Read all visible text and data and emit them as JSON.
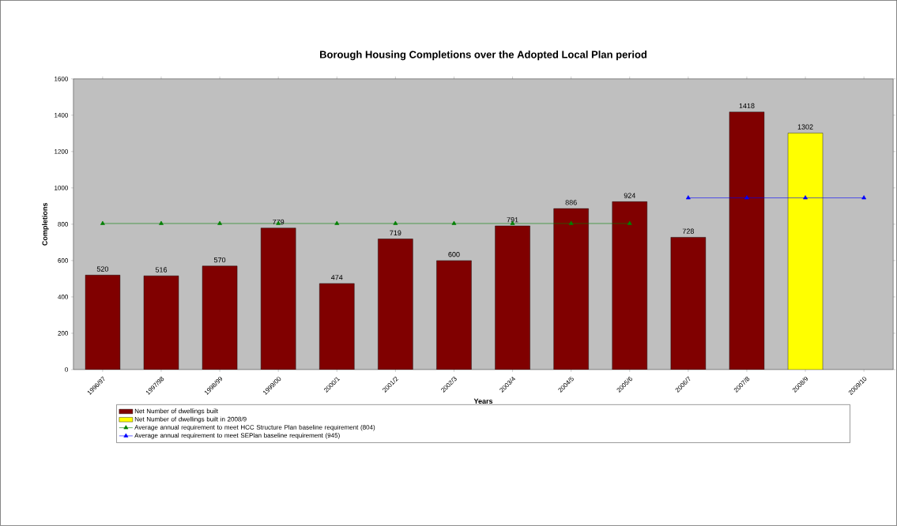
{
  "chart_data": {
    "type": "bar",
    "title": "Borough Housing Completions over the Adopted Local Plan period",
    "xlabel": "Years",
    "ylabel": "Completions",
    "categories": [
      "1996/97",
      "1997/98",
      "1998/99",
      "1999/00",
      "2000/1",
      "2001/2",
      "2002/3",
      "2003/4",
      "2004/5",
      "2005/6",
      "2006/7",
      "2007/8",
      "2008/9",
      "2009/10"
    ],
    "ylim": [
      0,
      1600
    ],
    "yticks": [
      0,
      200,
      400,
      600,
      800,
      1000,
      1200,
      1400,
      1600
    ],
    "legend": "bottom",
    "series": [
      {
        "name": "Net Number of dwellings built",
        "color": "#800000",
        "values": [
          520,
          516,
          570,
          779,
          474,
          719,
          600,
          791,
          886,
          924,
          728,
          1418,
          null,
          null
        ],
        "value_labels": [
          "520",
          "516",
          "570",
          "779",
          "474",
          "719",
          "600",
          "791",
          "886",
          "924",
          "728",
          "1418",
          null,
          null
        ]
      },
      {
        "name": "Net Number of dwellings built in 2008/9",
        "color": "#ffff00",
        "values": [
          null,
          null,
          null,
          null,
          null,
          null,
          null,
          null,
          null,
          null,
          null,
          null,
          1302,
          null
        ],
        "value_labels": [
          null,
          null,
          null,
          null,
          null,
          null,
          null,
          null,
          null,
          null,
          null,
          null,
          "1302",
          null
        ]
      },
      {
        "type": "line",
        "marker": "triangle",
        "name": "Average annual requirement to meet HCC Structure Plan baseline requirement (804)",
        "color": "#008000",
        "values": [
          804,
          804,
          804,
          804,
          804,
          804,
          804,
          804,
          804,
          804,
          null,
          null,
          null,
          null
        ]
      },
      {
        "type": "line",
        "marker": "triangle",
        "name": "Average annual requirement to meet SEPlan baseline requirement (945)",
        "color": "#0000ff",
        "values": [
          null,
          null,
          null,
          null,
          null,
          null,
          null,
          null,
          null,
          null,
          945,
          945,
          945,
          945
        ]
      }
    ]
  }
}
